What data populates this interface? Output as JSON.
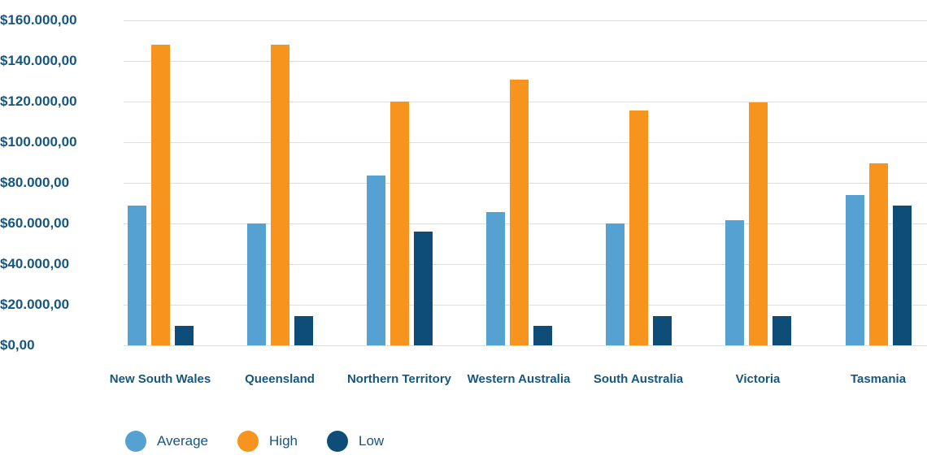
{
  "chart_data": {
    "type": "bar",
    "title": "",
    "categories": [
      "New South Wales",
      "Queensland",
      "Northern Territory",
      "Western Australia",
      "South Australia",
      "Victoria",
      "Tasmania"
    ],
    "series": [
      {
        "name": "Average",
        "color": "#55a1d2",
        "values": [
          69000,
          60000,
          83500,
          65500,
          60000,
          61500,
          74000
        ]
      },
      {
        "name": "High",
        "color": "#f7941e",
        "values": [
          148000,
          148000,
          120000,
          131000,
          115500,
          119500,
          89500
        ]
      },
      {
        "name": "Low",
        "color": "#0d4d78",
        "values": [
          9500,
          14500,
          56000,
          9500,
          14500,
          14500,
          69000
        ]
      }
    ],
    "y_axis": {
      "min": 0,
      "max": 160000,
      "step": 20000,
      "tick_labels": [
        "$160.000,00",
        "$140.000,00",
        "$120.000,00",
        "$100.000,00",
        "$80.000,00",
        "$60.000,00",
        "$40.000,00",
        "$20.000,00",
        "$0,00"
      ]
    },
    "xlabel": "",
    "ylabel": "",
    "grid": true,
    "legend": {
      "position": "bottom",
      "items": [
        "Average",
        "High",
        "Low"
      ]
    }
  },
  "colors": {
    "text": "#17567f",
    "gridline": "#dedede",
    "background": "#ffffff",
    "series_average": "#55a1d2",
    "series_high": "#f7941e",
    "series_low": "#0d4d78"
  }
}
